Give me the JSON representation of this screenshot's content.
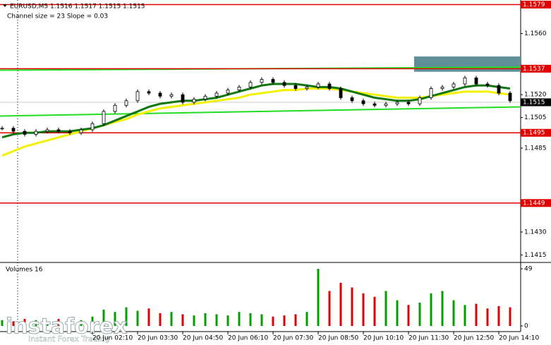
{
  "chart_data": [
    {
      "type": "candlestick",
      "title": "EURUSD,M5  1.1516 1.1517 1.1515 1.1515",
      "subtitle": "Channel size = 23 Slope = 0.03",
      "color": "#000000",
      "values": [
        1.1498,
        1.1496,
        1.1494,
        1.1496,
        1.1497,
        1.1496,
        1.1495,
        1.1497,
        1.1501,
        1.1509,
        1.1513,
        1.1516,
        1.1522,
        1.1521,
        1.1519,
        1.152,
        1.1515,
        1.1517,
        1.1519,
        1.1521,
        1.1523,
        1.1525,
        1.1528,
        1.153,
        1.1528,
        1.1526,
        1.1524,
        1.1525,
        1.1527,
        1.1524,
        1.1518,
        1.1516,
        1.1514,
        1.1513,
        1.1514,
        1.1515,
        1.1514,
        1.1518,
        1.1524,
        1.1525,
        1.1527,
        1.1531,
        1.1527,
        1.1526,
        1.1521,
        1.1516
      ],
      "overlays": [
        {
          "color": "#f2f200",
          "values": [
            1.148,
            1.1483,
            1.1486,
            1.1488,
            1.149,
            1.1492,
            1.1494,
            1.1496,
            1.1498,
            1.15,
            1.1502,
            1.1504,
            1.1507,
            1.1509,
            1.1511,
            1.1512,
            1.1513,
            1.1514,
            1.1515,
            1.1516,
            1.1517,
            1.1518,
            1.152,
            1.1521,
            1.1522,
            1.1523,
            1.1523,
            1.1524,
            1.1524,
            1.1524,
            1.1523,
            1.1522,
            1.1521,
            1.152,
            1.1519,
            1.1518,
            1.1518,
            1.1518,
            1.1519,
            1.152,
            1.1521,
            1.1522,
            1.1522,
            1.1522,
            1.1521,
            1.152
          ]
        },
        {
          "color": "#117711",
          "values": [
            1.1492,
            1.1494,
            1.1495,
            1.1495,
            1.1496,
            1.1496,
            1.1496,
            1.1497,
            1.1498,
            1.15,
            1.1503,
            1.1506,
            1.1509,
            1.1512,
            1.1514,
            1.1515,
            1.1516,
            1.1516,
            1.1517,
            1.1518,
            1.152,
            1.1522,
            1.1524,
            1.1526,
            1.1527,
            1.1527,
            1.1527,
            1.1526,
            1.1525,
            1.1525,
            1.1524,
            1.1522,
            1.152,
            1.1518,
            1.1517,
            1.1516,
            1.1516,
            1.1517,
            1.1519,
            1.1521,
            1.1523,
            1.1525,
            1.1526,
            1.1526,
            1.1525,
            1.1524
          ]
        }
      ],
      "channel": {
        "color": "#22dd22",
        "lines": [
          [
            1.1536,
            1.1538
          ],
          [
            1.1506,
            1.1512
          ]
        ]
      },
      "zone": {
        "color": "#5f8f99",
        "values": [
          1.1535,
          1.1545
        ]
      },
      "levels": [
        {
          "value": 1.1579,
          "color": "#e00000"
        },
        {
          "value": 1.1537,
          "color": "#e00000"
        },
        {
          "value": 1.1495,
          "color": "#e00000"
        },
        {
          "value": 1.1449,
          "color": "#e00000"
        },
        {
          "value": 1.1515,
          "color": "#000000"
        }
      ],
      "ylim": [
        1.1411,
        1.1582
      ],
      "yticks": [
        {
          "value": 1.156,
          "label": "1.1560"
        },
        {
          "value": 1.152,
          "label": "1.1520"
        },
        1.1505,
        1.1485,
        {
          "value": 1.143,
          "label": "1.1430"
        },
        1.1415
      ],
      "grid": false
    },
    {
      "type": "bar",
      "title": "Volumes 16",
      "up_color": "#00a000",
      "down_color": "#e00000",
      "categories": [
        null,
        null,
        null,
        null,
        null,
        null,
        null,
        null,
        "20 Jun 02:10",
        null,
        null,
        null,
        "20 Jun 03:30",
        null,
        null,
        null,
        "20 Jun 04:50",
        null,
        null,
        null,
        "20 Jun 06:10",
        null,
        null,
        null,
        "20 Jun 07:30",
        null,
        null,
        null,
        "20 Jun 08:50",
        null,
        null,
        null,
        "20 Jun 10:10",
        null,
        null,
        null,
        "20 Jun 11:30",
        null,
        null,
        null,
        "20 Jun 12:50",
        null,
        null,
        null,
        "20 Jun 14:10",
        null
      ],
      "values": [
        5,
        4,
        6,
        5,
        4,
        6,
        7,
        5,
        8,
        14,
        12,
        16,
        13,
        15,
        11,
        12,
        10,
        9,
        11,
        10,
        9,
        12,
        11,
        10,
        8,
        9,
        10,
        12,
        49,
        30,
        37,
        33,
        28,
        25,
        30,
        22,
        18,
        20,
        28,
        30,
        22,
        18,
        19,
        15,
        17,
        16
      ],
      "ylim": [
        0,
        49
      ],
      "yticks": [
        0,
        49
      ]
    }
  ],
  "watermark": {
    "brand": "instaforex",
    "tagline": "Instant Forex Trading"
  }
}
